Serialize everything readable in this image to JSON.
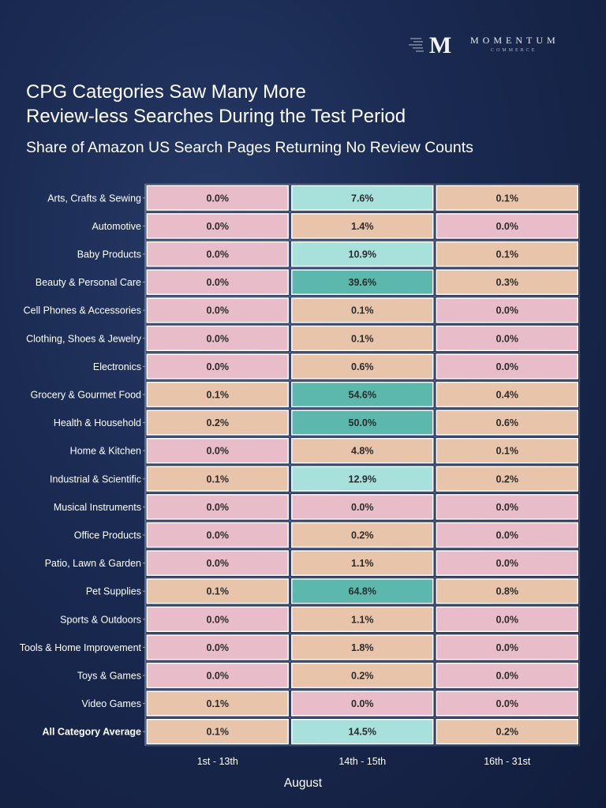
{
  "brand": {
    "name": "MOMENTUM",
    "sub": "COMMERCE",
    "mark_letter": "M"
  },
  "title_line1": "CPG Categories Saw Many More",
  "title_line2": "Review-less Searches During the Test Period",
  "subtitle": "Share of Amazon US Search Pages Returning No Review Counts",
  "chart_data": {
    "type": "heatmap",
    "title": "CPG Categories Saw Many More Review-less Searches During the Test Period",
    "subtitle": "Share of Amazon US Search Pages Returning No Review Counts",
    "xlabel": "August",
    "columns": [
      "1st - 13th",
      "14th - 15th",
      "16th - 31st"
    ],
    "rows": [
      "Arts, Crafts & Sewing",
      "Automotive",
      "Baby Products",
      "Beauty & Personal Care",
      "Cell Phones & Accessories",
      "Clothing, Shoes & Jewelry",
      "Electronics",
      "Grocery & Gourmet Food",
      "Health & Household",
      "Home & Kitchen",
      "Industrial & Scientific",
      "Musical Instruments",
      "Office Products",
      "Patio, Lawn & Garden",
      "Pet Supplies",
      "Sports & Outdoors",
      "Tools & Home Improvement",
      "Toys & Games",
      "Video Games",
      "All Category Average"
    ],
    "values": [
      [
        0.0,
        7.6,
        0.1
      ],
      [
        0.0,
        1.4,
        0.0
      ],
      [
        0.0,
        10.9,
        0.1
      ],
      [
        0.0,
        39.6,
        0.3
      ],
      [
        0.0,
        0.1,
        0.0
      ],
      [
        0.0,
        0.1,
        0.0
      ],
      [
        0.0,
        0.6,
        0.0
      ],
      [
        0.1,
        54.6,
        0.4
      ],
      [
        0.2,
        50.0,
        0.6
      ],
      [
        0.0,
        4.8,
        0.1
      ],
      [
        0.1,
        12.9,
        0.2
      ],
      [
        0.0,
        0.0,
        0.0
      ],
      [
        0.0,
        0.2,
        0.0
      ],
      [
        0.0,
        1.1,
        0.0
      ],
      [
        0.1,
        64.8,
        0.8
      ],
      [
        0.0,
        1.1,
        0.0
      ],
      [
        0.0,
        1.8,
        0.0
      ],
      [
        0.0,
        0.2,
        0.0
      ],
      [
        0.1,
        0.0,
        0.0
      ],
      [
        0.1,
        14.5,
        0.2
      ]
    ],
    "value_suffix": "%",
    "bold_rows": [
      "All Category Average"
    ],
    "colors": {
      "zero": "#e8bcc8",
      "low": "#e8c4aa",
      "mid": "#a8e0dc",
      "high": "#5cb8ac",
      "cell_border": "#ffffff",
      "grid": "#9aa3bd"
    }
  }
}
